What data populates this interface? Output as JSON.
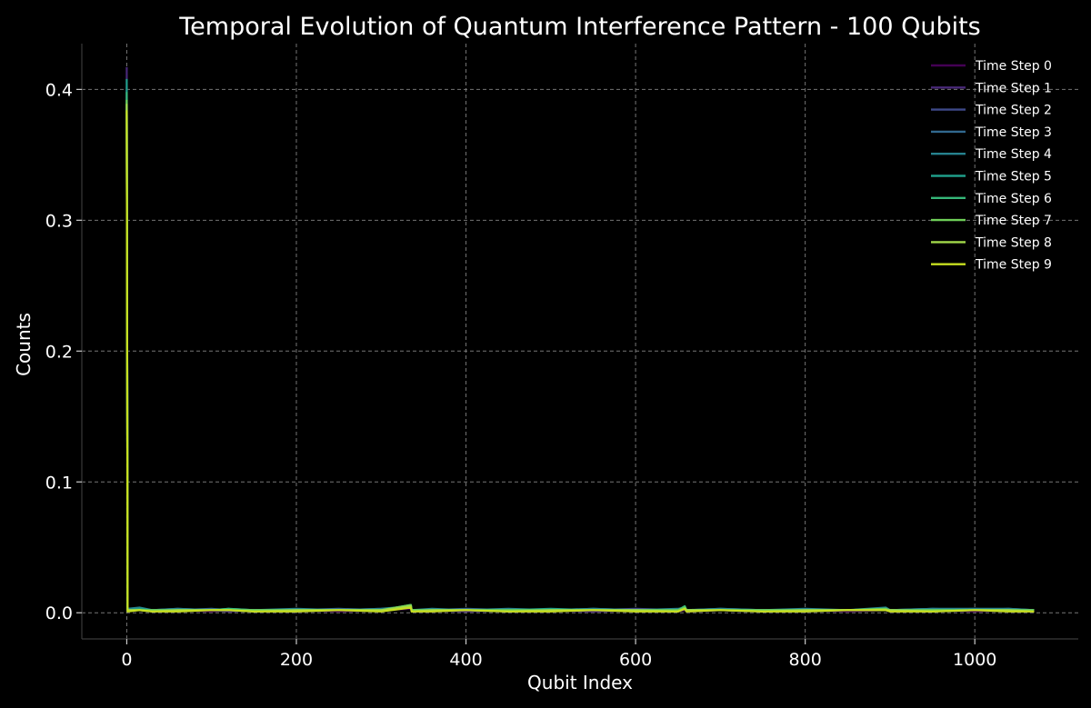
{
  "chart_data": {
    "type": "line",
    "title": "Temporal Evolution of Quantum Interference Pattern - 100 Qubits",
    "xlabel": "Qubit Index",
    "ylabel": "Counts",
    "xlim": [
      -53,
      1122
    ],
    "ylim": [
      -0.02,
      0.435
    ],
    "xticks": [
      0,
      200,
      400,
      600,
      800,
      1000
    ],
    "xtick_labels": [
      "0",
      "200",
      "400",
      "600",
      "800",
      "1000"
    ],
    "yticks": [
      0.0,
      0.1,
      0.2,
      0.3,
      0.4
    ],
    "ytick_labels": [
      "0.0",
      "0.1",
      "0.2",
      "0.3",
      "0.4"
    ],
    "grid": true,
    "legend_position": "top-right",
    "x": [
      0,
      1,
      15,
      30,
      60,
      100,
      120,
      150,
      200,
      250,
      300,
      335,
      336,
      360,
      400,
      450,
      500,
      550,
      600,
      650,
      658,
      660,
      700,
      750,
      800,
      850,
      895,
      900,
      950,
      1000,
      1040,
      1070
    ],
    "series": [
      {
        "name": "Time Step 0",
        "color": "#440154",
        "values": [
          0.395,
          0.002,
          0.002,
          0.001,
          0.002,
          0.001,
          0.002,
          0.001,
          0.002,
          0.001,
          0.002,
          0.003,
          0.001,
          0.001,
          0.002,
          0.001,
          0.002,
          0.001,
          0.002,
          0.001,
          0.002,
          0.001,
          0.002,
          0.001,
          0.002,
          0.001,
          0.002,
          0.001,
          0.002,
          0.001,
          0.002,
          0.001
        ]
      },
      {
        "name": "Time Step 1",
        "color": "#482878",
        "values": [
          0.417,
          0.002,
          0.003,
          0.001,
          0.002,
          0.002,
          0.001,
          0.002,
          0.001,
          0.002,
          0.002,
          0.004,
          0.001,
          0.002,
          0.001,
          0.002,
          0.002,
          0.001,
          0.002,
          0.002,
          0.003,
          0.001,
          0.002,
          0.001,
          0.002,
          0.002,
          0.002,
          0.001,
          0.002,
          0.002,
          0.002,
          0.001
        ]
      },
      {
        "name": "Time Step 2",
        "color": "#3e4989",
        "values": [
          0.402,
          0.003,
          0.002,
          0.002,
          0.003,
          0.002,
          0.002,
          0.001,
          0.002,
          0.002,
          0.003,
          0.004,
          0.002,
          0.002,
          0.002,
          0.001,
          0.002,
          0.002,
          0.003,
          0.002,
          0.003,
          0.002,
          0.002,
          0.002,
          0.001,
          0.002,
          0.003,
          0.002,
          0.002,
          0.003,
          0.002,
          0.002
        ]
      },
      {
        "name": "Time Step 3",
        "color": "#31688e",
        "values": [
          0.391,
          0.002,
          0.003,
          0.002,
          0.002,
          0.003,
          0.002,
          0.002,
          0.002,
          0.003,
          0.002,
          0.005,
          0.002,
          0.002,
          0.003,
          0.002,
          0.002,
          0.003,
          0.002,
          0.002,
          0.004,
          0.002,
          0.003,
          0.002,
          0.002,
          0.002,
          0.003,
          0.002,
          0.003,
          0.002,
          0.003,
          0.002
        ]
      },
      {
        "name": "Time Step 4",
        "color": "#26828e",
        "values": [
          0.386,
          0.003,
          0.004,
          0.002,
          0.003,
          0.002,
          0.003,
          0.002,
          0.003,
          0.002,
          0.003,
          0.005,
          0.002,
          0.003,
          0.002,
          0.003,
          0.002,
          0.003,
          0.002,
          0.003,
          0.004,
          0.002,
          0.003,
          0.002,
          0.003,
          0.002,
          0.004,
          0.002,
          0.003,
          0.003,
          0.003,
          0.002
        ]
      },
      {
        "name": "Time Step 5",
        "color": "#1f9e89",
        "values": [
          0.408,
          0.002,
          0.003,
          0.002,
          0.002,
          0.002,
          0.002,
          0.002,
          0.002,
          0.002,
          0.002,
          0.005,
          0.002,
          0.002,
          0.002,
          0.002,
          0.003,
          0.002,
          0.002,
          0.002,
          0.004,
          0.002,
          0.002,
          0.002,
          0.002,
          0.002,
          0.003,
          0.002,
          0.002,
          0.002,
          0.002,
          0.002
        ]
      },
      {
        "name": "Time Step 6",
        "color": "#35b779",
        "values": [
          0.398,
          0.002,
          0.002,
          0.002,
          0.002,
          0.002,
          0.003,
          0.002,
          0.002,
          0.002,
          0.002,
          0.006,
          0.002,
          0.002,
          0.002,
          0.002,
          0.002,
          0.002,
          0.002,
          0.002,
          0.005,
          0.002,
          0.002,
          0.002,
          0.002,
          0.002,
          0.003,
          0.002,
          0.002,
          0.002,
          0.002,
          0.002
        ]
      },
      {
        "name": "Time Step 7",
        "color": "#6ece58",
        "values": [
          0.392,
          0.002,
          0.002,
          0.002,
          0.002,
          0.002,
          0.002,
          0.002,
          0.002,
          0.002,
          0.002,
          0.006,
          0.002,
          0.002,
          0.002,
          0.002,
          0.002,
          0.002,
          0.002,
          0.002,
          0.004,
          0.002,
          0.002,
          0.002,
          0.002,
          0.002,
          0.003,
          0.002,
          0.002,
          0.002,
          0.002,
          0.002
        ]
      },
      {
        "name": "Time Step 8",
        "color": "#a2d94a",
        "values": [
          0.389,
          0.002,
          0.002,
          0.001,
          0.002,
          0.002,
          0.002,
          0.001,
          0.002,
          0.002,
          0.002,
          0.005,
          0.001,
          0.002,
          0.002,
          0.001,
          0.002,
          0.002,
          0.002,
          0.001,
          0.003,
          0.002,
          0.002,
          0.001,
          0.002,
          0.002,
          0.002,
          0.002,
          0.001,
          0.002,
          0.002,
          0.001
        ]
      },
      {
        "name": "Time Step 9",
        "color": "#c8e020",
        "values": [
          0.384,
          0.001,
          0.002,
          0.001,
          0.001,
          0.002,
          0.002,
          0.001,
          0.001,
          0.002,
          0.001,
          0.004,
          0.001,
          0.001,
          0.002,
          0.001,
          0.001,
          0.002,
          0.001,
          0.001,
          0.003,
          0.001,
          0.002,
          0.001,
          0.001,
          0.002,
          0.002,
          0.001,
          0.001,
          0.002,
          0.001,
          0.001
        ]
      }
    ]
  }
}
